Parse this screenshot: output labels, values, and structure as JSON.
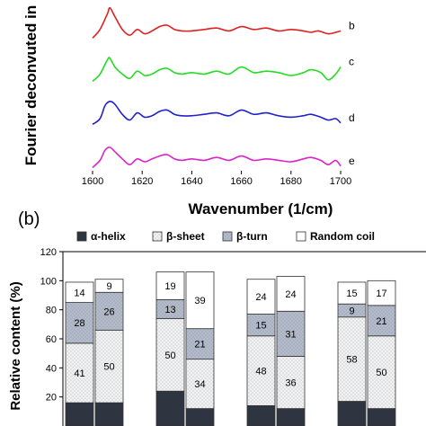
{
  "chart_data": [
    {
      "type": "line",
      "panel_label": "",
      "ylabel": "Fourier deconvuted in",
      "xlabel": "Wavenumber (1/cm)",
      "xlim": [
        1600,
        1700
      ],
      "x_ticks": [
        1600,
        1620,
        1640,
        1660,
        1680,
        1700
      ],
      "series": [
        {
          "name": "b",
          "color": "#e02020",
          "offset": 3,
          "x": [
            1600,
            1603,
            1606,
            1607,
            1609,
            1612,
            1615,
            1618,
            1621,
            1624,
            1627,
            1630,
            1633,
            1636,
            1640,
            1645,
            1650,
            1655,
            1660,
            1665,
            1670,
            1675,
            1680,
            1685,
            1688,
            1691,
            1695,
            1698,
            1700
          ],
          "y": [
            0.05,
            0.35,
            0.9,
            1.1,
            0.8,
            0.35,
            0.15,
            0.35,
            0.2,
            0.3,
            0.45,
            0.5,
            0.35,
            0.3,
            0.3,
            0.35,
            0.4,
            0.3,
            0.45,
            0.35,
            0.4,
            0.3,
            0.35,
            0.3,
            0.25,
            0.3,
            0.2,
            0.25,
            0.3
          ]
        },
        {
          "name": "c",
          "color": "#22dd22",
          "offset": 2,
          "x": [
            1600,
            1603,
            1606,
            1607,
            1609,
            1612,
            1615,
            1618,
            1621,
            1624,
            1627,
            1630,
            1633,
            1636,
            1640,
            1645,
            1650,
            1655,
            1660,
            1665,
            1670,
            1675,
            1680,
            1685,
            1688,
            1692,
            1695,
            1698,
            1700
          ],
          "y": [
            0.05,
            0.3,
            0.8,
            0.85,
            0.55,
            0.3,
            0.15,
            0.4,
            0.25,
            0.3,
            0.45,
            0.5,
            0.35,
            0.3,
            0.35,
            0.3,
            0.4,
            0.3,
            0.55,
            0.35,
            0.4,
            0.35,
            0.25,
            0.35,
            0.45,
            0.35,
            0.1,
            0.3,
            0.55
          ]
        },
        {
          "name": "d",
          "color": "#2222cc",
          "offset": 1,
          "x": [
            1600,
            1603,
            1605,
            1607,
            1609,
            1612,
            1615,
            1618,
            1621,
            1624,
            1627,
            1630,
            1633,
            1636,
            1640,
            1645,
            1650,
            1655,
            1660,
            1665,
            1670,
            1675,
            1680,
            1685,
            1688,
            1692,
            1695,
            1698,
            1700
          ],
          "y": [
            0.05,
            0.25,
            0.7,
            0.85,
            0.75,
            0.4,
            0.2,
            0.45,
            0.3,
            0.35,
            0.5,
            0.55,
            0.4,
            0.35,
            0.35,
            0.4,
            0.45,
            0.35,
            0.55,
            0.4,
            0.45,
            0.35,
            0.3,
            0.35,
            0.4,
            0.3,
            0.2,
            0.25,
            0.1
          ]
        },
        {
          "name": "e",
          "color": "#dd22cc",
          "offset": 0,
          "x": [
            1600,
            1603,
            1605,
            1607,
            1609,
            1612,
            1615,
            1618,
            1621,
            1624,
            1627,
            1630,
            1633,
            1636,
            1640,
            1645,
            1650,
            1655,
            1660,
            1665,
            1670,
            1675,
            1680,
            1685,
            1688,
            1692,
            1695,
            1698,
            1700
          ],
          "y": [
            0.05,
            0.3,
            0.65,
            0.75,
            0.6,
            0.35,
            0.15,
            0.35,
            0.25,
            0.35,
            0.45,
            0.5,
            0.35,
            0.3,
            0.35,
            0.3,
            0.4,
            0.3,
            0.45,
            0.3,
            0.35,
            0.3,
            0.25,
            0.35,
            0.4,
            0.3,
            0.15,
            0.3,
            0.1
          ]
        }
      ]
    },
    {
      "type": "bar",
      "stacked": true,
      "panel_label": "(b)",
      "ylabel": "Relative content (%)",
      "ylim": [
        0,
        120
      ],
      "y_ticks": [
        20,
        40,
        60,
        80,
        100,
        120
      ],
      "legend_position": "top",
      "series": [
        {
          "name": "α-helix",
          "color": "#2e3440",
          "pattern": "solid-dark"
        },
        {
          "name": "β-sheet",
          "color": "#f2f2f2",
          "pattern": "dots"
        },
        {
          "name": "β-turn",
          "color": "#b4bccb",
          "pattern": "dots"
        },
        {
          "name": "Random coil",
          "color": "#ffffff",
          "pattern": "plain"
        }
      ],
      "bars": [
        {
          "helix": 16,
          "sheet": 41,
          "turn": 28,
          "coil": 14,
          "labels": [
            "41",
            "28",
            "14"
          ]
        },
        {
          "helix": 16,
          "sheet": 50,
          "turn": 26,
          "coil": 9,
          "labels": [
            "50",
            "26",
            "9"
          ]
        },
        {
          "helix": 24,
          "sheet": 50,
          "turn": 13,
          "coil": 19,
          "labels": [
            "50",
            "13",
            "19"
          ]
        },
        {
          "helix": 12,
          "sheet": 34,
          "turn": 21,
          "coil": 39,
          "labels": [
            "34",
            "21",
            "39"
          ]
        },
        {
          "helix": 14,
          "sheet": 48,
          "turn": 15,
          "coil": 24,
          "labels": [
            "48",
            "15",
            "24"
          ]
        },
        {
          "helix": 12,
          "sheet": 36,
          "turn": 31,
          "coil": 24,
          "labels": [
            "36",
            "31",
            "24"
          ]
        },
        {
          "helix": 17,
          "sheet": 58,
          "turn": 9,
          "coil": 15,
          "labels": [
            "58",
            "9",
            "15"
          ]
        },
        {
          "helix": 12,
          "sheet": 50,
          "turn": 21,
          "coil": 17,
          "labels": [
            "50",
            "21",
            "17"
          ]
        }
      ]
    }
  ]
}
